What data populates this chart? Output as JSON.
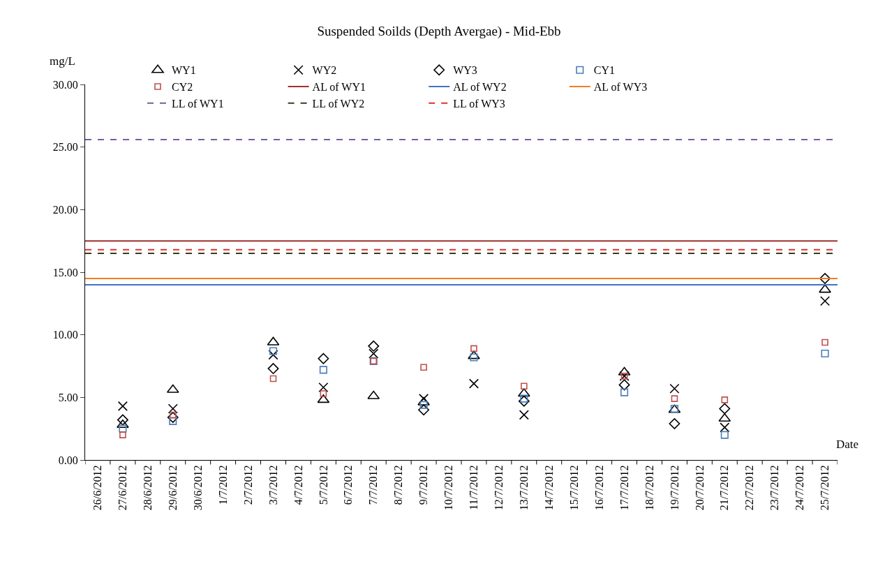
{
  "chart_data": {
    "type": "scatter",
    "title": "Suspended Soilds (Depth Avergae) - Mid-Ebb",
    "xlabel": "Date",
    "ylabel": "mg/L",
    "categories": [
      "26/6/2012",
      "27/6/2012",
      "28/6/2012",
      "29/6/2012",
      "30/6/2012",
      "1/7/2012",
      "2/7/2012",
      "3/7/2012",
      "4/7/2012",
      "5/7/2012",
      "6/7/2012",
      "7/7/2012",
      "8/7/2012",
      "9/7/2012",
      "10/7/2012",
      "11/7/2012",
      "12/7/2012",
      "13/7/2012",
      "14/7/2012",
      "15/7/2012",
      "16/7/2012",
      "17/7/2012",
      "18/7/2012",
      "19/7/2012",
      "20/7/2012",
      "21/7/2012",
      "22/7/2012",
      "23/7/2012",
      "24/7/2012",
      "25/7/2012"
    ],
    "series": [
      {
        "name": "WY1",
        "color": "#000000",
        "marker": "triangle",
        "values": [
          null,
          2.8,
          null,
          5.6,
          null,
          null,
          null,
          9.4,
          null,
          4.8,
          null,
          5.1,
          null,
          4.6,
          null,
          8.3,
          null,
          5.3,
          null,
          null,
          null,
          7.0,
          null,
          4.0,
          null,
          3.3,
          null,
          null,
          null,
          13.6
        ]
      },
      {
        "name": "WY2",
        "color": "#000000",
        "marker": "cross",
        "values": [
          null,
          4.3,
          null,
          4.1,
          null,
          null,
          null,
          8.4,
          null,
          5.8,
          null,
          8.5,
          null,
          4.9,
          null,
          6.1,
          null,
          3.6,
          null,
          null,
          null,
          6.7,
          null,
          5.7,
          null,
          2.6,
          null,
          null,
          null,
          12.7
        ]
      },
      {
        "name": "WY3",
        "color": "#000000",
        "marker": "diamond",
        "values": [
          null,
          3.2,
          null,
          3.4,
          null,
          null,
          null,
          7.3,
          null,
          8.1,
          null,
          9.1,
          null,
          4.0,
          null,
          null,
          null,
          4.7,
          null,
          null,
          null,
          6.0,
          null,
          2.9,
          null,
          4.1,
          null,
          null,
          null,
          14.5
        ]
      },
      {
        "name": "CY1",
        "color": "#4a7ebb",
        "marker": "square",
        "values": [
          null,
          2.5,
          null,
          3.1,
          null,
          null,
          null,
          8.7,
          null,
          7.2,
          null,
          7.9,
          null,
          4.4,
          null,
          8.2,
          null,
          4.9,
          null,
          null,
          null,
          5.4,
          null,
          4.1,
          null,
          2.0,
          null,
          null,
          null,
          8.5
        ]
      },
      {
        "name": "CY2",
        "color": "#c0504d",
        "marker": "square",
        "values": [
          null,
          2.0,
          null,
          3.6,
          null,
          null,
          null,
          6.5,
          null,
          5.3,
          null,
          7.9,
          null,
          7.4,
          null,
          8.9,
          null,
          5.9,
          null,
          null,
          null,
          6.7,
          null,
          4.9,
          null,
          4.8,
          null,
          null,
          null,
          9.4
        ]
      }
    ],
    "ref_lines": [
      {
        "axis": "y",
        "value": 17.5,
        "label": "AL of WY1",
        "color": "#a0302c",
        "line_style": "solid"
      },
      {
        "axis": "y",
        "value": 14.0,
        "label": "AL of WY2",
        "color": "#4472c4",
        "line_style": "solid"
      },
      {
        "axis": "y",
        "value": 14.5,
        "label": "AL of WY3",
        "color": "#f07f20",
        "line_style": "solid"
      },
      {
        "axis": "y",
        "value": 25.6,
        "label": "LL of WY1",
        "color": "#7a5c9e",
        "line_style": "dashed"
      },
      {
        "axis": "y",
        "value": 16.5,
        "label": "LL of WY2",
        "color": "#3b3b1f",
        "line_style": "dashed"
      },
      {
        "axis": "y",
        "value": 16.8,
        "label": "LL of WY3",
        "color": "#e03030",
        "line_style": "dashed"
      }
    ],
    "ylim": [
      0,
      30
    ],
    "yticks": [
      {
        "value": 0,
        "label": "0.00"
      },
      {
        "value": 5,
        "label": "5.00"
      },
      {
        "value": 10,
        "label": "10.00"
      },
      {
        "value": 15,
        "label": "15.00"
      },
      {
        "value": 20,
        "label": "20.00"
      },
      {
        "value": 25,
        "label": "25.00"
      },
      {
        "value": 30,
        "label": "30.00"
      }
    ],
    "legend": "top"
  }
}
